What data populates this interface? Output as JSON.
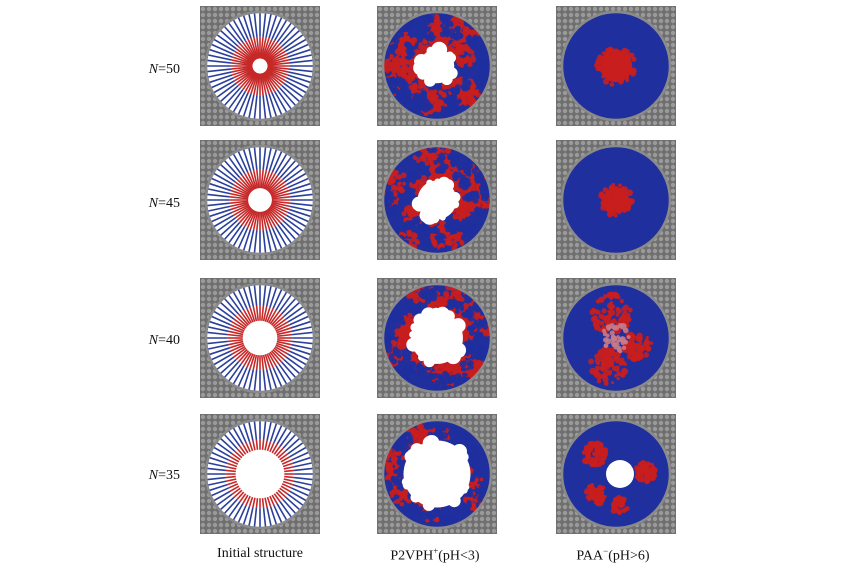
{
  "rows": [
    {
      "n_prefix": "N",
      "n_suffix": "=50",
      "hole_initial": 0.14,
      "hole_p2vph": 0.32,
      "core_paa": 0.3,
      "paa_variant": "core"
    },
    {
      "n_prefix": "N",
      "n_suffix": "=45",
      "hole_initial": 0.22,
      "hole_p2vph": 0.36,
      "core_paa": 0.24,
      "paa_variant": "core"
    },
    {
      "n_prefix": "N",
      "n_suffix": "=40",
      "hole_initial": 0.32,
      "hole_p2vph": 0.48,
      "core_paa": 0.0,
      "paa_variant": "bands"
    },
    {
      "n_prefix": "N",
      "n_suffix": "=35",
      "hole_initial": 0.45,
      "hole_p2vph": 0.62,
      "core_paa": 0.0,
      "paa_variant": "split"
    }
  ],
  "columns": [
    {
      "label_main": "Initial structure",
      "label_sup": "",
      "label_tail": ""
    },
    {
      "label_main": "P2VPH",
      "label_sup": "+",
      "label_tail": "(pH<3)"
    },
    {
      "label_main": "PAA",
      "label_sup": "−",
      "label_tail": "(pH>6)"
    }
  ],
  "colors": {
    "wall": "#6f6f6f",
    "wall_dot": "#9a9a9a",
    "ring": "#8a8a8a",
    "blue": "#1f2f9e",
    "red": "#c81e1e",
    "initial_blue": "#2a3f9c",
    "initial_red": "#c62828"
  }
}
